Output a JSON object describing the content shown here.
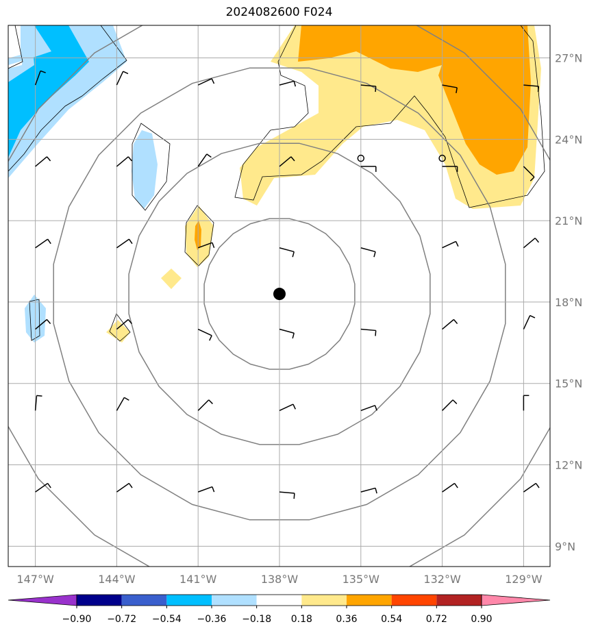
{
  "chart_data": {
    "type": "map",
    "title": "2024082600 F024",
    "lon_ticks": [
      {
        "value": -147,
        "label": "147°W"
      },
      {
        "value": -144,
        "label": "144°W"
      },
      {
        "value": -141,
        "label": "141°W"
      },
      {
        "value": -138,
        "label": "138°W"
      },
      {
        "value": -135,
        "label": "135°W"
      },
      {
        "value": -132,
        "label": "132°W"
      },
      {
        "value": -129,
        "label": "129°W"
      }
    ],
    "lat_ticks": [
      {
        "value": 9,
        "label": "9°N"
      },
      {
        "value": 12,
        "label": "12°N"
      },
      {
        "value": 15,
        "label": "15°N"
      },
      {
        "value": 18,
        "label": "18°N"
      },
      {
        "value": 21,
        "label": "21°N"
      },
      {
        "value": 24,
        "label": "24°N"
      },
      {
        "value": 27,
        "label": "27°N"
      }
    ],
    "lon_range": [
      -148,
      -128
    ],
    "lat_range": [
      8.4,
      28.2
    ],
    "grid": true,
    "center": {
      "lon": -138,
      "lat": 18.3
    },
    "range_rings_deg": [
      2.8,
      5.6,
      8.4,
      11.2
    ],
    "other_markers": [
      {
        "lon": -135,
        "lat": 23.3
      },
      {
        "lon": -132,
        "lat": 23.3
      }
    ],
    "colorbar": {
      "levels": [
        -0.9,
        -0.72,
        -0.54,
        -0.36,
        -0.18,
        0.18,
        0.36,
        0.54,
        0.72,
        0.9
      ],
      "labels": [
        "−0.90",
        "−0.72",
        "−0.54",
        "−0.36",
        "−0.18",
        "0.18",
        "0.36",
        "0.54",
        "0.72",
        "0.90"
      ],
      "colors": [
        "#9932cc",
        "#00008b",
        "#3a5fcd",
        "#00bfff",
        "#b0e0ff",
        "#ffffff",
        "#ffe98c",
        "#ffa500",
        "#ff4500",
        "#b22222",
        "#ff88aa"
      ],
      "extend": "both"
    }
  }
}
